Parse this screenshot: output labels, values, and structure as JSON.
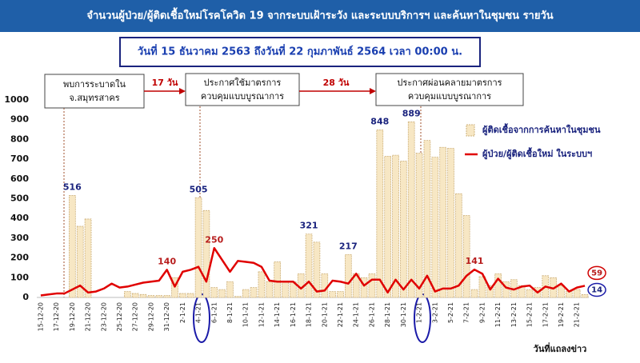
{
  "chart_data": {
    "type": "bar-line",
    "title": "จำนวนผู้ป่วย/ผู้ติดเชื้อใหม่โรคโควิด 19 จากระบบเฝ้าระวัง และระบบบริการฯ และค้นหาในชุมชน รายวัน",
    "subtitle": "วันที่ 15 ธันวาคม 2563 ถึงวันที่ 22 กุมภาพันธ์ 2564 เวลา 00:00 น.",
    "x_label": "วันที่แถลงข่าว",
    "annotations": {
      "boxes": [
        [
          "พบการระบาดใน",
          "จ.สมุทรสาคร"
        ],
        [
          "ประกาศใช้มาตรการ",
          "ควบคุมแบบบูรณาการ"
        ],
        [
          "ประกาศผ่อนคลายมาตรการ",
          "ควบคุมแบบบูรณาการ"
        ]
      ],
      "intervals": [
        "17 วัน",
        "28 วัน"
      ]
    },
    "categories": [
      "15-12-20",
      null,
      "17-12-20",
      null,
      "19-12-20",
      null,
      "21-12-20",
      null,
      "23-12-20",
      null,
      "25-12-20",
      null,
      "27-12-20",
      null,
      "29-12-20",
      null,
      "31-12-20",
      null,
      "2-1-21",
      null,
      "4-1-21",
      null,
      "6-1-21",
      null,
      "8-1-21",
      null,
      "10-1-21",
      null,
      "12-1-21",
      null,
      "14-1-21",
      null,
      "16-1-21",
      null,
      "18-1-21",
      null,
      "20-1-21",
      null,
      "22-1-21",
      null,
      "24-1-21",
      null,
      "26-1-21",
      null,
      "28-1-21",
      null,
      "30-1-21",
      null,
      "1-2-21",
      null,
      "3-2-21",
      null,
      "5-2-21",
      null,
      "7-2-21",
      null,
      "9-2-21",
      null,
      "11-2-21",
      null,
      "13-2-21",
      null,
      "15-2-21",
      null,
      "17-2-21",
      null,
      "19-2-21",
      null,
      "21-2-21",
      null
    ],
    "ylim": [
      0,
      1000
    ],
    "yticks": [
      0,
      100,
      200,
      300,
      400,
      500,
      600,
      700,
      800,
      900,
      1000
    ],
    "grid": false,
    "legend": "upper right",
    "series": [
      {
        "name": "ผู้ติดเชื้อจากการค้นหาในชุมชน",
        "type": "bar",
        "color": "#f7e7c4",
        "edge": "#cdb07a",
        "label_color": "#1a237e",
        "labeled": [
          4,
          20,
          34,
          39,
          43,
          47
        ],
        "circled": [
          69
        ],
        "values": [
          0,
          0,
          0,
          0,
          516,
          360,
          397,
          0,
          0,
          0,
          0,
          30,
          20,
          15,
          10,
          10,
          10,
          100,
          20,
          20,
          505,
          440,
          50,
          40,
          80,
          5,
          40,
          50,
          130,
          80,
          180,
          80,
          80,
          120,
          321,
          280,
          120,
          30,
          30,
          217,
          120,
          100,
          120,
          848,
          715,
          720,
          690,
          889,
          730,
          795,
          710,
          760,
          755,
          525,
          415,
          40,
          105,
          60,
          120,
          80,
          90,
          60,
          40,
          50,
          110,
          100,
          60,
          30,
          40,
          14
        ]
      },
      {
        "name": "ผู้ป่วย/ผู้ติดเชื้อใหม่ ในระบบฯ",
        "type": "line",
        "color": "#e00000",
        "label_color": "#b71c1c",
        "labeled": [
          16,
          22,
          55
        ],
        "circled": [
          69
        ],
        "values": [
          10,
          15,
          20,
          20,
          40,
          60,
          25,
          30,
          45,
          70,
          50,
          55,
          65,
          75,
          80,
          85,
          140,
          55,
          130,
          140,
          155,
          80,
          250,
          190,
          130,
          185,
          180,
          175,
          155,
          85,
          80,
          80,
          80,
          45,
          80,
          30,
          35,
          85,
          80,
          70,
          120,
          60,
          90,
          90,
          25,
          90,
          40,
          90,
          45,
          110,
          30,
          45,
          45,
          60,
          110,
          141,
          120,
          40,
          95,
          50,
          40,
          55,
          60,
          25,
          55,
          45,
          70,
          30,
          50,
          59
        ]
      }
    ]
  }
}
